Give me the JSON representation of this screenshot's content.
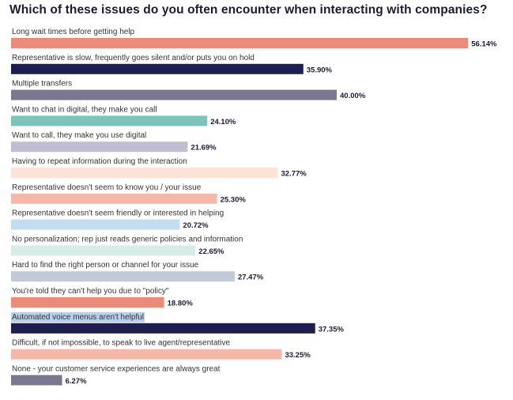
{
  "chart_data": {
    "type": "bar",
    "orientation": "horizontal",
    "title": "Which of these issues do you often encounter when interacting with companies?",
    "xlabel": "",
    "ylabel": "",
    "xlim": [
      0,
      60
    ],
    "grid": false,
    "value_suffix": "%",
    "categories": [
      "Long wait times before getting help",
      "Representative is slow, frequently goes silent and/or puts you on hold",
      "Multiple transfers",
      "Want to chat in digital, they make you call",
      "Want to call, they make you use digital",
      "Having to repeat information during the interaction",
      "Representative doesn't seem to know you / your issue",
      "Representative doesn't seem friendly or interested in helping",
      "No personalization; rep just reads generic policies and information",
      "Hard to find the right person or channel for your issue",
      "You're told they can't help you due to \"policy\"",
      "Automated voice menus aren't helpful",
      "Difficult, if not impossible, to speak to live agent/representative",
      "None - your customer service experiences are always great"
    ],
    "values": [
      56.14,
      35.9,
      40.0,
      24.1,
      21.69,
      32.77,
      25.3,
      20.72,
      22.65,
      27.47,
      18.8,
      37.35,
      33.25,
      6.27
    ],
    "value_labels": [
      "56.14%",
      "35.90%",
      "40.00%",
      "24.10%",
      "21.69%",
      "32.77%",
      "25.30%",
      "20.72%",
      "22.65%",
      "27.47%",
      "18.80%",
      "37.35%",
      "33.25%",
      "6.27%"
    ],
    "colors": [
      "#ed8a78",
      "#1e1e52",
      "#7a7890",
      "#7cc3bc",
      "#c1bdd0",
      "#fde3d6",
      "#f5b8a8",
      "#c4dcef",
      "#d8ece7",
      "#c1cbd8",
      "#ed8a78",
      "#1e1e52",
      "#f5b8a8",
      "#7a7890"
    ],
    "highlighted_category_index": 11
  }
}
